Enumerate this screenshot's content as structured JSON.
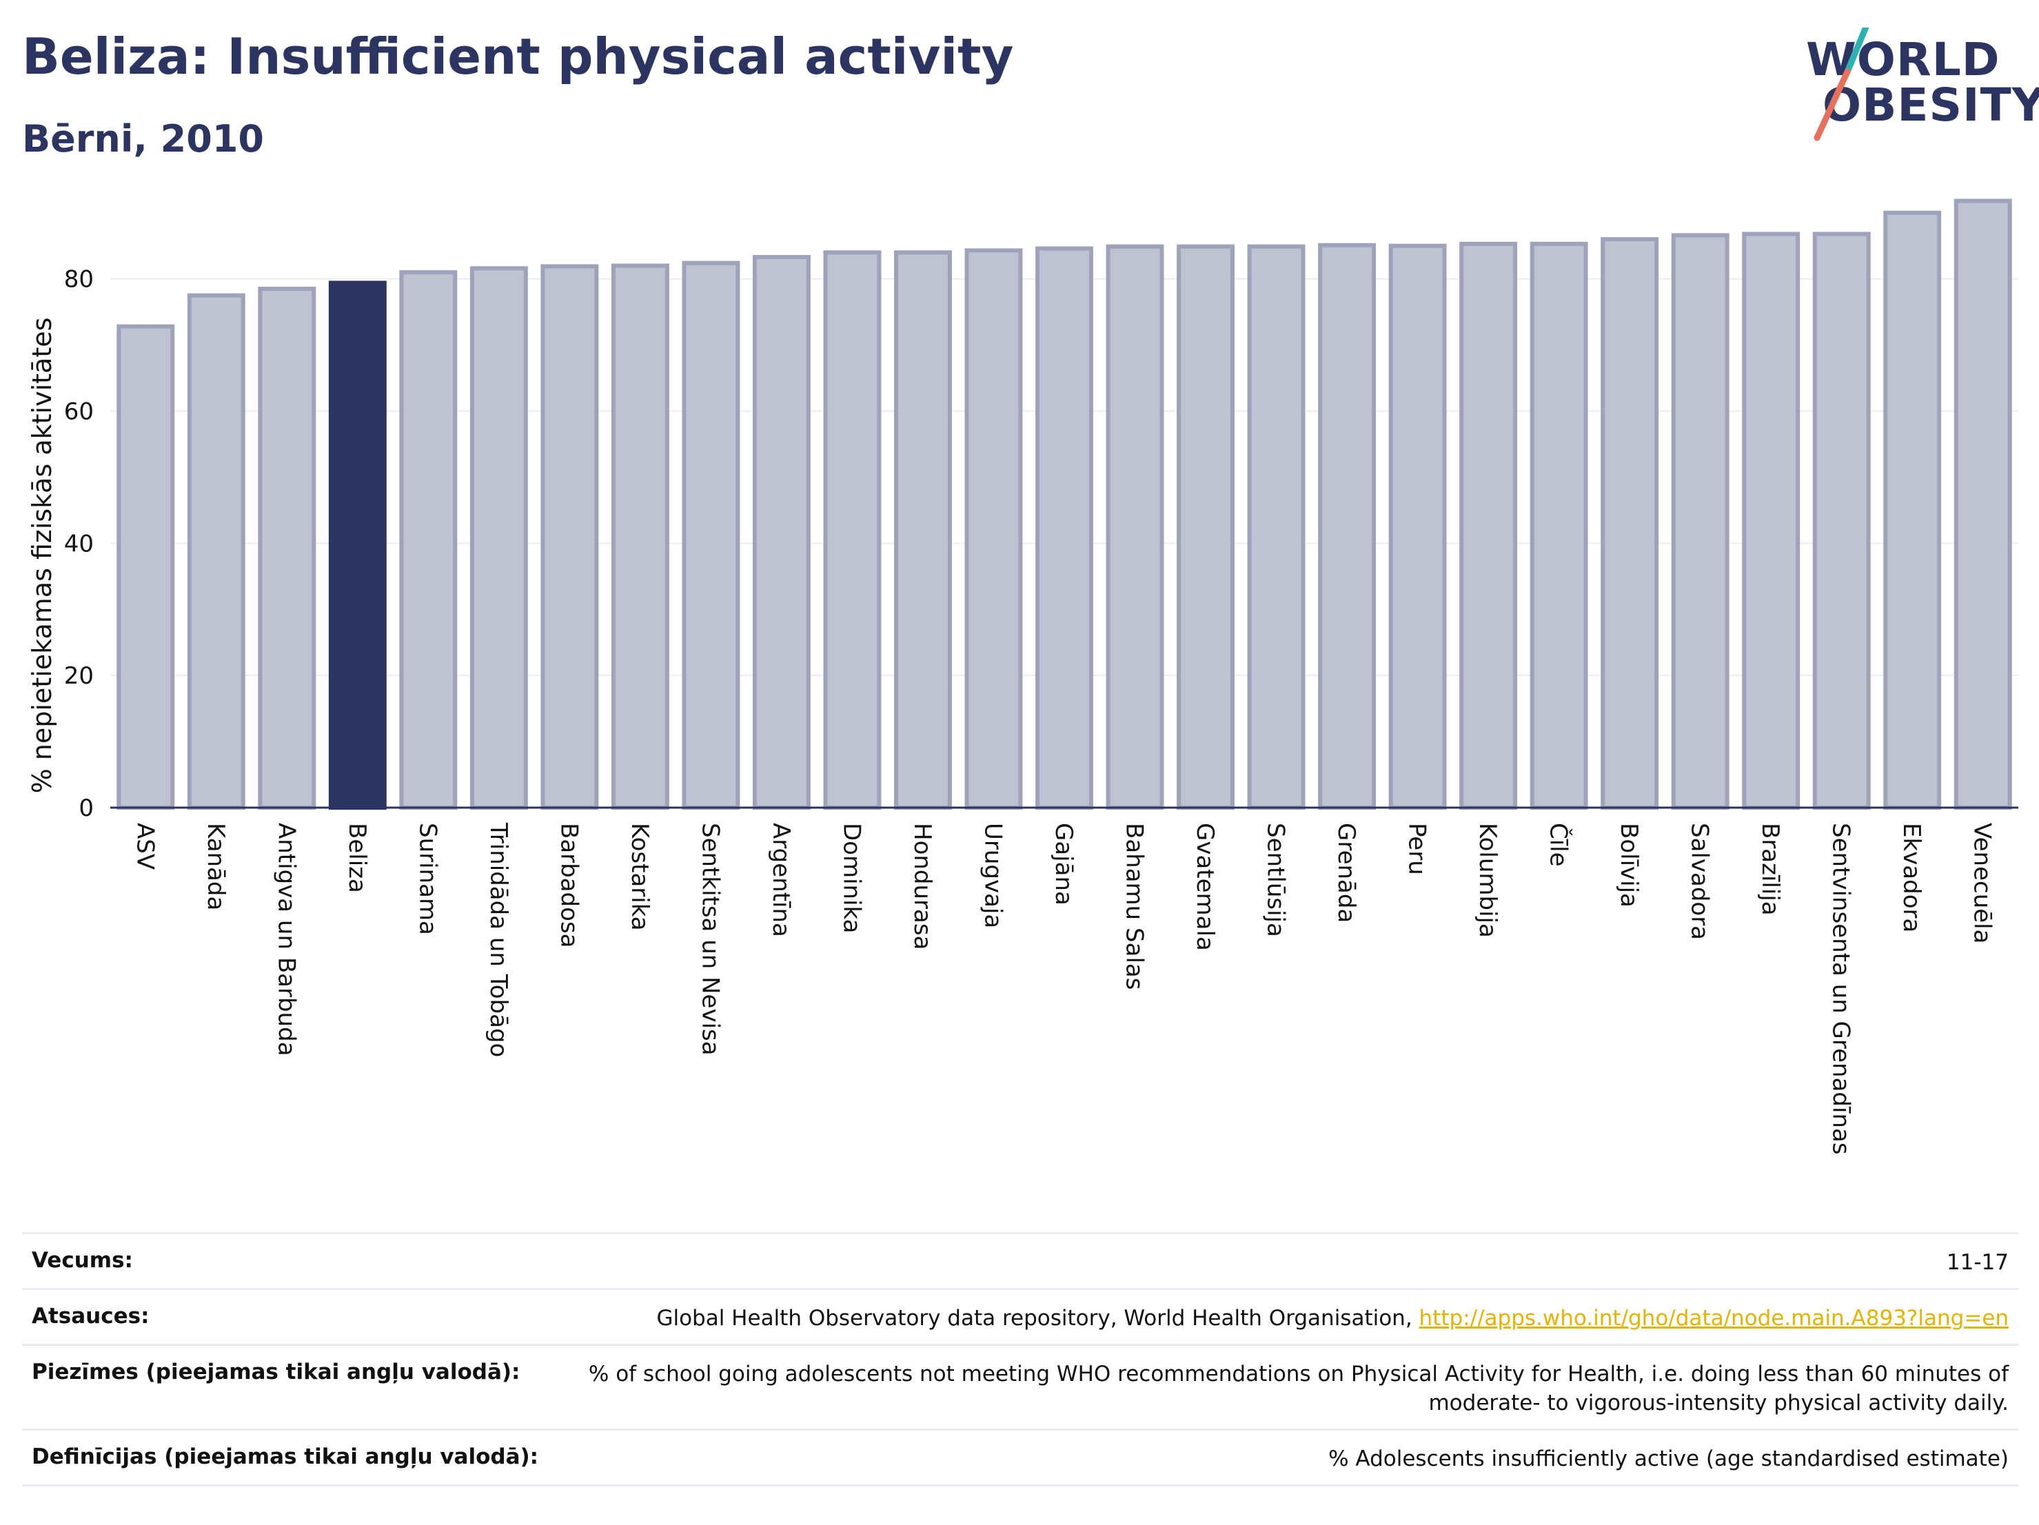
{
  "header": {
    "title": "Beliza: Insufficient physical activity",
    "subtitle": "Bērni, 2010"
  },
  "logo": {
    "line1": "WORLD",
    "line2": "OBESITY"
  },
  "colors": {
    "bar": "#bfc2d0",
    "bar_stroke": "#9ea3bb",
    "highlight": "#2c3561",
    "accent_teal": "#2ab3b1",
    "accent_red": "#e8705a"
  },
  "chart_data": {
    "type": "bar",
    "ylabel": "% nepietiekamas fiziskās aktivitātes",
    "ylim": [
      0,
      93
    ],
    "yticks": [
      0,
      20,
      40,
      60,
      80
    ],
    "highlight": "Beliza",
    "grid": true,
    "categories": [
      "ASV",
      "Kanāda",
      "Antigva un Barbuda",
      "Beliza",
      "Surinama",
      "Trinidāda un Tobāgo",
      "Barbadosa",
      "Kostarika",
      "Sentkitsa un Nevisa",
      "Argentīna",
      "Dominika",
      "Hondurasa",
      "Urugvaja",
      "Gajāna",
      "Bahamu Salas",
      "Gvatemala",
      "Sentlūsija",
      "Grenāda",
      "Peru",
      "Kolumbija",
      "Čīle",
      "Bolīvija",
      "Salvadora",
      "Brazīlija",
      "Sentvinsenta un Grenadīnas",
      "Ekvadora",
      "Venecuēla"
    ],
    "values": [
      72.8,
      77.5,
      78.5,
      79.4,
      81.0,
      81.6,
      81.9,
      82.0,
      82.4,
      83.3,
      84.0,
      84.0,
      84.3,
      84.6,
      84.9,
      84.9,
      84.9,
      85.1,
      85.0,
      85.3,
      85.3,
      86.0,
      86.6,
      86.8,
      86.8,
      90.0,
      91.8
    ]
  },
  "footer": {
    "rows": [
      {
        "label": "Vecums:",
        "value": "11-17"
      },
      {
        "label": "Atsauces:",
        "value": "Global Health Observatory data repository, World Health Organisation, ",
        "link": "http://apps.who.int/gho/data/node.main.A893?lang=en"
      },
      {
        "label": "Piezīmes (pieejamas tikai angļu valodā):",
        "value": "% of school going adolescents not meeting WHO recommendations on Physical Activity for Health, i.e. doing less than 60 minutes of moderate- to vigorous-intensity physical activity daily."
      },
      {
        "label": "Definīcijas (pieejamas tikai angļu valodā):",
        "value": "% Adolescents insufficiently active (age standardised estimate)"
      }
    ]
  }
}
